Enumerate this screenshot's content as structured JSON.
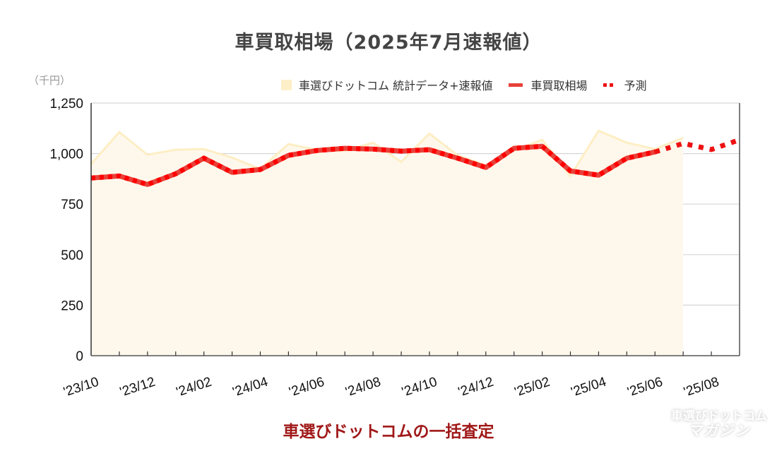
{
  "header": {
    "title": "車買取相場（2025年7月速報値）",
    "unit": "（千円）"
  },
  "legend": [
    {
      "label": "車選びドットコム 統計データ+速報値",
      "type": "area",
      "color": "#fdefc8"
    },
    {
      "label": "車買取相場",
      "type": "line",
      "color": "#e8413a"
    },
    {
      "label": "予測",
      "type": "dotted",
      "color": "#ee1111"
    }
  ],
  "footer": {
    "label": "車選びドットコムの一括査定",
    "watermark_line1": "車選びドットコム",
    "watermark_line2": "マガジン"
  },
  "chart_data": {
    "type": "line",
    "title": "車買取相場（2025年7月速報値）",
    "xlabel": "",
    "ylabel": "（千円）",
    "ylim": [
      0,
      1250
    ],
    "yticks": [
      0,
      250,
      500,
      750,
      1000,
      1250
    ],
    "ytick_labels": [
      "0",
      "250",
      "500",
      "750",
      "1,000",
      "1,250"
    ],
    "grid": true,
    "legend_position": "top-right",
    "x": [
      "'23/10",
      "'23/11",
      "'23/12",
      "'24/01",
      "'24/02",
      "'24/03",
      "'24/04",
      "'24/05",
      "'24/06",
      "'24/07",
      "'24/08",
      "'24/09",
      "'24/10",
      "'24/11",
      "'24/12",
      "'25/01",
      "'25/02",
      "'25/03",
      "'25/04",
      "'25/05",
      "'25/06",
      "'25/07",
      "'25/08",
      "'25/09"
    ],
    "xtick_labels": [
      "'23/10",
      "'23/12",
      "'24/02",
      "'24/04",
      "'24/06",
      "'24/08",
      "'24/10",
      "'24/12",
      "'25/02",
      "'25/04",
      "'25/06",
      "'25/08"
    ],
    "series": [
      {
        "name": "車選びドットコム 統計データ+速報値",
        "style": "area",
        "values": [
          949,
          1106,
          994,
          1019,
          1022,
          980,
          924,
          1047,
          1019,
          1012,
          1054,
          959,
          1099,
          991,
          942,
          1015,
          1068,
          889,
          1113,
          1054,
          1022,
          1078,
          null,
          null
        ]
      },
      {
        "name": "車買取相場",
        "style": "line",
        "values": [
          879,
          889,
          847,
          900,
          977,
          907,
          921,
          991,
          1015,
          1026,
          1022,
          1012,
          1019,
          977,
          931,
          1026,
          1036,
          914,
          893,
          977,
          1008,
          null,
          null,
          null
        ]
      },
      {
        "name": "予測",
        "style": "dotted",
        "values": [
          null,
          null,
          null,
          null,
          null,
          null,
          null,
          null,
          null,
          null,
          null,
          null,
          null,
          null,
          null,
          null,
          null,
          null,
          null,
          null,
          1008,
          1050,
          1020,
          1068
        ]
      }
    ]
  }
}
